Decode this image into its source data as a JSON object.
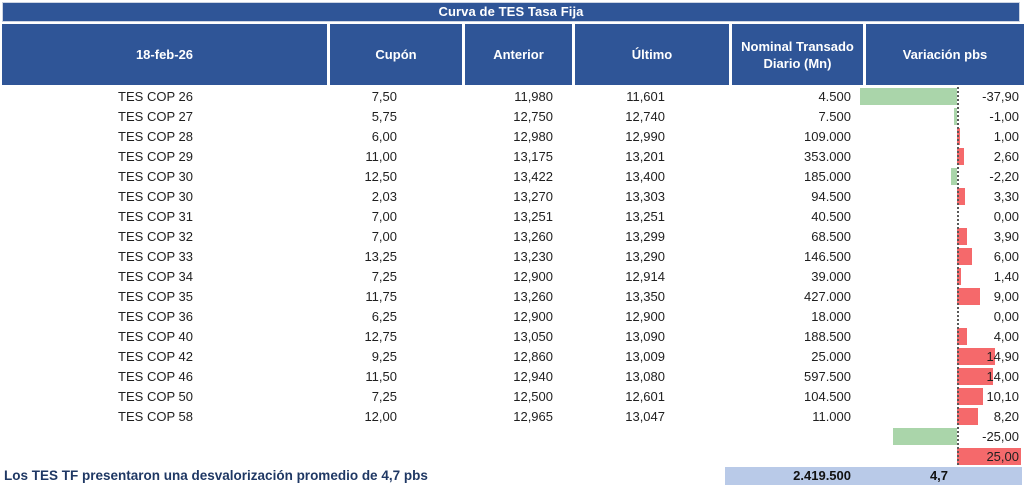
{
  "title": "Curva de TES Tasa Fija",
  "columns": [
    {
      "label": "18-feb-26"
    },
    {
      "label": "Cupón"
    },
    {
      "label": "Anterior"
    },
    {
      "label": "Último"
    },
    {
      "label": "Nominal Transado Diario (Mn)"
    },
    {
      "label": "Variación pbs"
    }
  ],
  "rows": [
    {
      "name": "TES COP 26",
      "cupon": "7,50",
      "anterior": "11,980",
      "ultimo": "11,601",
      "nominal": "4.500",
      "variacion": "-37,90",
      "variacion_pbs": -37.9
    },
    {
      "name": "TES COP 27",
      "cupon": "5,75",
      "anterior": "12,750",
      "ultimo": "12,740",
      "nominal": "7.500",
      "variacion": "-1,00",
      "variacion_pbs": -1.0
    },
    {
      "name": "TES COP 28",
      "cupon": "6,00",
      "anterior": "12,980",
      "ultimo": "12,990",
      "nominal": "109.000",
      "variacion": "1,00",
      "variacion_pbs": 1.0
    },
    {
      "name": "TES COP 29",
      "cupon": "11,00",
      "anterior": "13,175",
      "ultimo": "13,201",
      "nominal": "353.000",
      "variacion": "2,60",
      "variacion_pbs": 2.6
    },
    {
      "name": "TES COP 30",
      "cupon": "12,50",
      "anterior": "13,422",
      "ultimo": "13,400",
      "nominal": "185.000",
      "variacion": "-2,20",
      "variacion_pbs": -2.2
    },
    {
      "name": "TES COP 30",
      "cupon": "2,03",
      "anterior": "13,270",
      "ultimo": "13,303",
      "nominal": "94.500",
      "variacion": "3,30",
      "variacion_pbs": 3.3
    },
    {
      "name": "TES COP 31",
      "cupon": "7,00",
      "anterior": "13,251",
      "ultimo": "13,251",
      "nominal": "40.500",
      "variacion": "0,00",
      "variacion_pbs": 0.0
    },
    {
      "name": "TES COP 32",
      "cupon": "7,00",
      "anterior": "13,260",
      "ultimo": "13,299",
      "nominal": "68.500",
      "variacion": "3,90",
      "variacion_pbs": 3.9
    },
    {
      "name": "TES COP 33",
      "cupon": "13,25",
      "anterior": "13,230",
      "ultimo": "13,290",
      "nominal": "146.500",
      "variacion": "6,00",
      "variacion_pbs": 6.0
    },
    {
      "name": "TES COP 34",
      "cupon": "7,25",
      "anterior": "12,900",
      "ultimo": "12,914",
      "nominal": "39.000",
      "variacion": "1,40",
      "variacion_pbs": 1.4
    },
    {
      "name": "TES COP 35",
      "cupon": "11,75",
      "anterior": "13,260",
      "ultimo": "13,350",
      "nominal": "427.000",
      "variacion": "9,00",
      "variacion_pbs": 9.0
    },
    {
      "name": "TES COP 36",
      "cupon": "6,25",
      "anterior": "12,900",
      "ultimo": "12,900",
      "nominal": "18.000",
      "variacion": "0,00",
      "variacion_pbs": 0.0
    },
    {
      "name": "TES COP 40",
      "cupon": "12,75",
      "anterior": "13,050",
      "ultimo": "13,090",
      "nominal": "188.500",
      "variacion": "4,00",
      "variacion_pbs": 4.0
    },
    {
      "name": "TES COP 42",
      "cupon": "9,25",
      "anterior": "12,860",
      "ultimo": "13,009",
      "nominal": "25.000",
      "variacion": "14,90",
      "variacion_pbs": 14.9
    },
    {
      "name": "TES COP 46",
      "cupon": "11,50",
      "anterior": "12,940",
      "ultimo": "13,080",
      "nominal": "597.500",
      "variacion": "14,00",
      "variacion_pbs": 14.0
    },
    {
      "name": "TES COP 50",
      "cupon": "7,25",
      "anterior": "12,500",
      "ultimo": "12,601",
      "nominal": "104.500",
      "variacion": "10,10",
      "variacion_pbs": 10.1
    },
    {
      "name": "TES COP 58",
      "cupon": "12,00",
      "anterior": "12,965",
      "ultimo": "13,047",
      "nominal": "11.000",
      "variacion": "8,20",
      "variacion_pbs": 8.2
    },
    {
      "name": "",
      "cupon": "",
      "anterior": "",
      "ultimo": "",
      "nominal": "",
      "variacion": "-25,00",
      "variacion_pbs": -25.0
    },
    {
      "name": "",
      "cupon": "",
      "anterior": "",
      "ultimo": "",
      "nominal": "",
      "variacion": "25,00",
      "variacion_pbs": 25.0
    }
  ],
  "summary": {
    "nominal_total": "2.419.500",
    "variacion_promedio": "4,7"
  },
  "footnote": "Los TES TF presentaron una desvalorización promedio de 4,7 pbs",
  "colors": {
    "header_blue": "#2F5597",
    "bar_positive": "#F5696B",
    "bar_negative": "#AAD5AA",
    "summary_band": "#B9CAE8",
    "footnote_text": "#1F3864"
  },
  "chart_data": {
    "type": "table",
    "title": "Curva de TES Tasa Fija",
    "date": "18-feb-26",
    "columns": [
      "18-feb-26",
      "Cupón",
      "Anterior",
      "Último",
      "Nominal Transado Diario (Mn)",
      "Variación pbs"
    ],
    "embedded_bar_chart": {
      "type": "bar",
      "orientation": "horizontal",
      "column": "Variación pbs",
      "categories": [
        "TES COP 26",
        "TES COP 27",
        "TES COP 28",
        "TES COP 29",
        "TES COP 30",
        "TES COP 30",
        "TES COP 31",
        "TES COP 32",
        "TES COP 33",
        "TES COP 34",
        "TES COP 35",
        "TES COP 36",
        "TES COP 40",
        "TES COP 42",
        "TES COP 46",
        "TES COP 50",
        "TES COP 58",
        "",
        ""
      ],
      "values": [
        -37.9,
        -1.0,
        1.0,
        2.6,
        -2.2,
        3.3,
        0.0,
        3.9,
        6.0,
        1.4,
        9.0,
        0.0,
        4.0,
        14.9,
        14.0,
        10.1,
        8.2,
        -25.0,
        25.0
      ],
      "xlim": [
        -37.9,
        25.0
      ],
      "negative_color": "#AAD5AA",
      "positive_color": "#F5696B"
    },
    "totals": {
      "nominal_transado_total": "2.419.500",
      "variacion_promedio_pbs": "4,7"
    }
  }
}
